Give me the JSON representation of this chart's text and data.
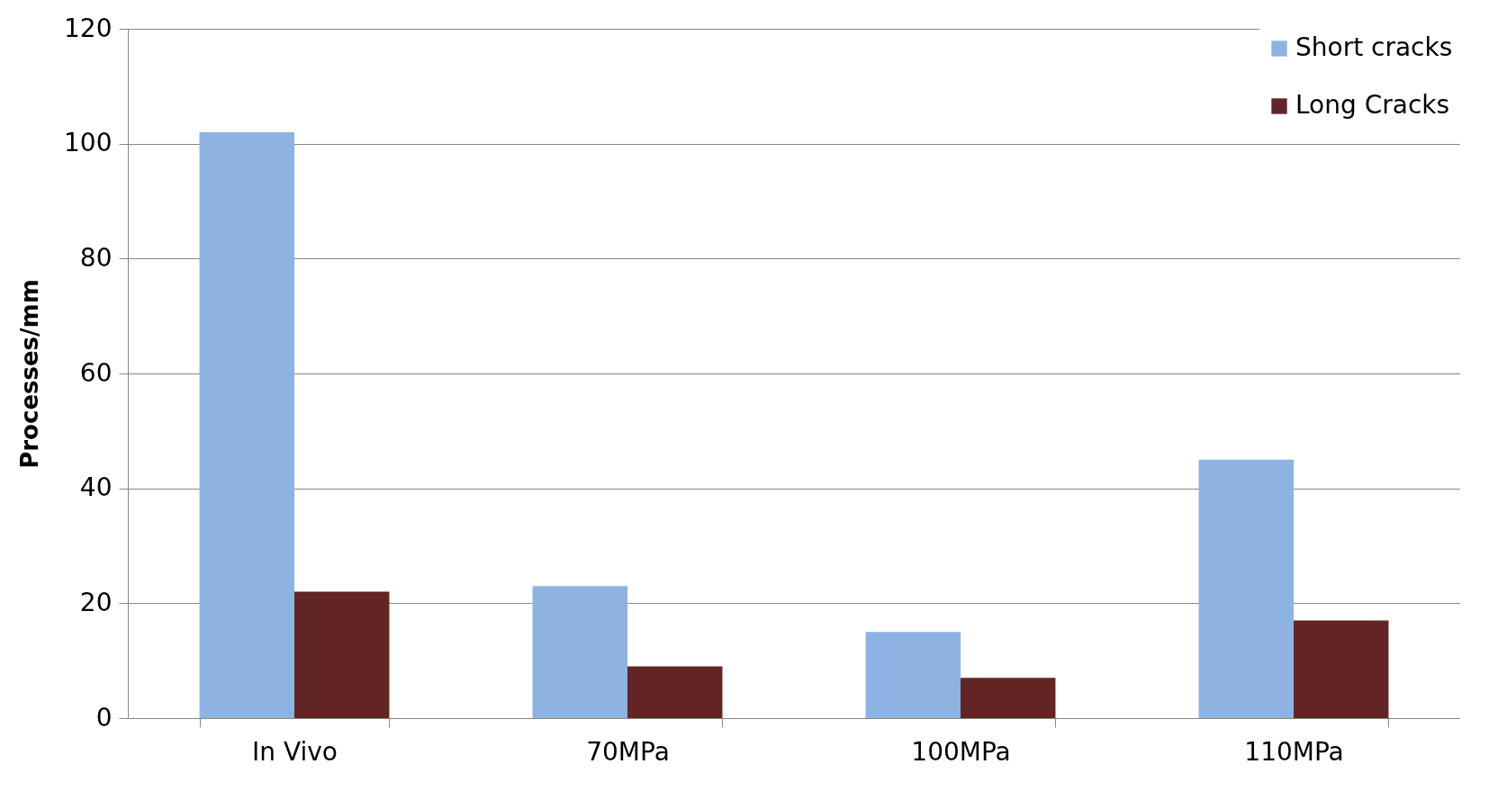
{
  "chart_data": {
    "type": "bar",
    "ylabel": "Processes/mm",
    "categories": [
      "In Vivo",
      "70MPa",
      "100MPa",
      "110MPa"
    ],
    "series": [
      {
        "name": "Short cracks",
        "color": "#8db3e2",
        "values": [
          102,
          23,
          15,
          45
        ]
      },
      {
        "name": "Long Cracks",
        "color": "#632523",
        "values": [
          22,
          9,
          7,
          17
        ]
      }
    ],
    "ylim": [
      0,
      120
    ],
    "yticks": [
      0,
      20,
      40,
      60,
      80,
      100,
      120
    ],
    "grid": "y",
    "legend": "top right"
  }
}
